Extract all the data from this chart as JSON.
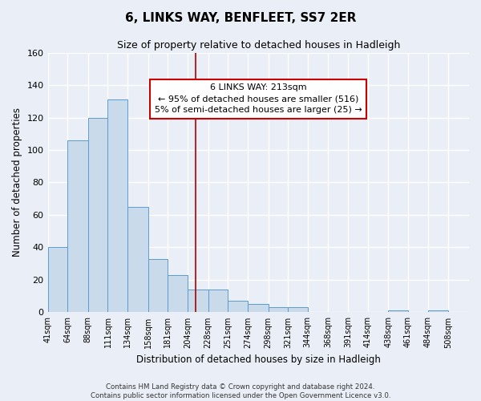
{
  "title": "6, LINKS WAY, BENFLEET, SS7 2ER",
  "subtitle": "Size of property relative to detached houses in Hadleigh",
  "xlabel": "Distribution of detached houses by size in Hadleigh",
  "ylabel": "Number of detached properties",
  "bar_labels": [
    "41sqm",
    "64sqm",
    "88sqm",
    "111sqm",
    "134sqm",
    "158sqm",
    "181sqm",
    "204sqm",
    "228sqm",
    "251sqm",
    "274sqm",
    "298sqm",
    "321sqm",
    "344sqm",
    "368sqm",
    "391sqm",
    "414sqm",
    "438sqm",
    "461sqm",
    "484sqm",
    "508sqm"
  ],
  "bar_edges": [
    41,
    64,
    88,
    111,
    134,
    158,
    181,
    204,
    228,
    251,
    274,
    298,
    321,
    344,
    368,
    391,
    414,
    438,
    461,
    484,
    508
  ],
  "bar_heights": [
    40,
    106,
    120,
    131,
    65,
    33,
    23,
    14,
    14,
    7,
    5,
    3,
    3,
    0,
    0,
    0,
    0,
    1,
    0,
    1,
    0
  ],
  "bar_color": "#c9daea",
  "bar_edgecolor": "#5b9bd5",
  "vline_x": 213,
  "vline_color": "#aa0000",
  "annotation_text": "6 LINKS WAY: 213sqm\n← 95% of detached houses are smaller (516)\n5% of semi-detached houses are larger (25) →",
  "annotation_box_color": "#ffffff",
  "annotation_box_edgecolor": "#cc0000",
  "ylim": [
    0,
    160
  ],
  "yticks": [
    0,
    20,
    40,
    60,
    80,
    100,
    120,
    140,
    160
  ],
  "bg_color": "#eaeff7",
  "grid_color": "#ffffff",
  "footer_line1": "Contains HM Land Registry data © Crown copyright and database right 2024.",
  "footer_line2": "Contains public sector information licensed under the Open Government Licence v3.0."
}
